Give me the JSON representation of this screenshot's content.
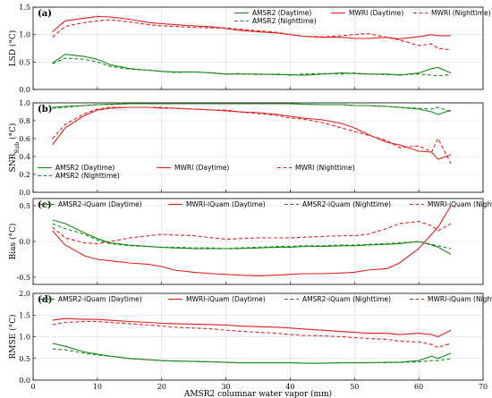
{
  "xlabel": "AMSR2 columnar water vapor (mm)",
  "xlim": [
    0,
    70
  ],
  "xticks": [
    0,
    10,
    20,
    30,
    40,
    50,
    60,
    70
  ],
  "colors": {
    "amsr2": "#1a8a1a",
    "mwri": "#e0201c"
  },
  "chart_data": [
    {
      "type": "line",
      "panel_label": "(a)",
      "ylabel": "LSD",
      "yunit": "(°C)",
      "ylim": [
        0,
        1.5
      ],
      "yticks": [
        0.0,
        0.5,
        1.0,
        1.5
      ],
      "grid": true,
      "legend_placement": "top-right",
      "x": [
        3,
        5,
        8,
        10,
        12,
        15,
        18,
        20,
        22,
        25,
        28,
        30,
        32,
        35,
        38,
        40,
        42,
        45,
        48,
        50,
        52,
        55,
        57,
        60,
        62,
        63,
        65
      ],
      "series": [
        {
          "name": "AMSR2 (Daytime)",
          "source": "amsr2",
          "style": "solid",
          "values": [
            0.48,
            0.64,
            0.6,
            0.55,
            0.45,
            0.38,
            0.35,
            0.33,
            0.32,
            0.32,
            0.3,
            0.28,
            0.28,
            0.28,
            0.27,
            0.27,
            0.26,
            0.28,
            0.3,
            0.29,
            0.28,
            0.28,
            0.26,
            0.3,
            0.38,
            0.4,
            0.3
          ]
        },
        {
          "name": "AMSR2 (Nighttime)",
          "source": "amsr2",
          "style": "dashed",
          "values": [
            0.47,
            0.57,
            0.55,
            0.5,
            0.42,
            0.37,
            0.35,
            0.33,
            0.31,
            0.32,
            0.3,
            0.28,
            0.29,
            0.27,
            0.28,
            0.26,
            0.28,
            0.29,
            0.28,
            0.3,
            0.28,
            0.27,
            0.27,
            0.28,
            0.26,
            0.25,
            0.27
          ]
        },
        {
          "name": "MWRI (Daytime)",
          "source": "mwri",
          "style": "solid",
          "values": [
            1.05,
            1.25,
            1.3,
            1.33,
            1.32,
            1.28,
            1.22,
            1.2,
            1.18,
            1.16,
            1.14,
            1.11,
            1.08,
            1.05,
            1.03,
            1.0,
            0.97,
            0.95,
            0.95,
            0.93,
            0.93,
            0.95,
            0.92,
            0.96,
            1.0,
            0.98,
            0.98
          ]
        },
        {
          "name": "MWRI (Nighttime)",
          "source": "mwri",
          "style": "dashed",
          "values": [
            0.95,
            1.15,
            1.22,
            1.25,
            1.27,
            1.23,
            1.18,
            1.16,
            1.15,
            1.13,
            1.12,
            1.12,
            1.1,
            1.07,
            1.04,
            1.0,
            0.97,
            0.96,
            0.98,
            1.0,
            1.02,
            0.95,
            0.9,
            0.8,
            0.83,
            0.75,
            0.72
          ]
        }
      ]
    },
    {
      "type": "line",
      "panel_label": "(b)",
      "ylabel": "SNR",
      "ylabel_sub": "Sub",
      "yunit": "(°C)",
      "ylim": [
        0,
        1.0
      ],
      "yticks": [
        0.0,
        0.2,
        0.4,
        0.6,
        0.8,
        1.0
      ],
      "grid": true,
      "legend_placement": "bottom",
      "x": [
        3,
        5,
        8,
        10,
        12,
        15,
        18,
        20,
        22,
        25,
        28,
        30,
        32,
        35,
        38,
        40,
        42,
        45,
        48,
        50,
        52,
        55,
        57,
        60,
        62,
        63,
        65
      ],
      "series": [
        {
          "name": "AMSR2 (Daytime)",
          "source": "amsr2",
          "style": "solid",
          "values": [
            0.95,
            0.96,
            0.97,
            0.98,
            0.985,
            0.99,
            0.99,
            0.99,
            0.99,
            0.99,
            0.99,
            0.99,
            0.99,
            0.99,
            0.99,
            0.99,
            0.985,
            0.98,
            0.98,
            0.97,
            0.97,
            0.96,
            0.95,
            0.93,
            0.9,
            0.87,
            0.92
          ]
        },
        {
          "name": "AMSR2 (Nighttime)",
          "source": "amsr2",
          "style": "dashed",
          "values": [
            0.94,
            0.95,
            0.97,
            0.98,
            0.98,
            0.99,
            0.99,
            0.99,
            0.99,
            0.99,
            0.99,
            0.99,
            0.99,
            0.99,
            0.99,
            0.99,
            0.985,
            0.98,
            0.98,
            0.97,
            0.97,
            0.96,
            0.95,
            0.94,
            0.93,
            0.95,
            0.9
          ]
        },
        {
          "name": "MWRI (Daytime)",
          "source": "mwri",
          "style": "solid",
          "values": [
            0.53,
            0.72,
            0.86,
            0.92,
            0.94,
            0.95,
            0.95,
            0.94,
            0.94,
            0.93,
            0.92,
            0.91,
            0.9,
            0.89,
            0.87,
            0.85,
            0.83,
            0.81,
            0.77,
            0.72,
            0.65,
            0.56,
            0.53,
            0.46,
            0.45,
            0.37,
            0.42
          ]
        },
        {
          "name": "MWRI (Nighttime)",
          "source": "mwri",
          "style": "dashed",
          "values": [
            0.6,
            0.76,
            0.88,
            0.93,
            0.95,
            0.95,
            0.95,
            0.95,
            0.94,
            0.93,
            0.92,
            0.92,
            0.9,
            0.88,
            0.86,
            0.83,
            0.82,
            0.78,
            0.72,
            0.68,
            0.64,
            0.58,
            0.5,
            0.52,
            0.45,
            0.6,
            0.32
          ]
        }
      ]
    },
    {
      "type": "line",
      "panel_label": "(c)",
      "ylabel": "Bias",
      "yunit": "(°C)",
      "ylim": [
        -0.6,
        0.6
      ],
      "yticks": [
        -0.5,
        0.0,
        0.5
      ],
      "grid": true,
      "legend_placement": "top",
      "x": [
        3,
        5,
        8,
        10,
        12,
        15,
        18,
        20,
        22,
        25,
        28,
        30,
        32,
        35,
        38,
        40,
        42,
        45,
        48,
        50,
        52,
        55,
        57,
        60,
        62,
        63,
        65
      ],
      "series": [
        {
          "name": "AMSR2-iQuam (Daytime)",
          "source": "amsr2",
          "style": "solid",
          "values": [
            0.3,
            0.25,
            0.12,
            0.04,
            -0.02,
            -0.05,
            -0.07,
            -0.08,
            -0.09,
            -0.1,
            -0.1,
            -0.1,
            -0.1,
            -0.09,
            -0.08,
            -0.08,
            -0.07,
            -0.07,
            -0.06,
            -0.06,
            -0.05,
            -0.04,
            -0.03,
            0.0,
            -0.05,
            -0.08,
            -0.18
          ]
        },
        {
          "name": "MWRI-iQuam (Daytime)",
          "source": "mwri",
          "style": "solid",
          "values": [
            0.15,
            -0.05,
            -0.2,
            -0.25,
            -0.27,
            -0.3,
            -0.32,
            -0.35,
            -0.4,
            -0.43,
            -0.45,
            -0.46,
            -0.47,
            -0.48,
            -0.47,
            -0.46,
            -0.45,
            -0.45,
            -0.44,
            -0.43,
            -0.4,
            -0.38,
            -0.3,
            -0.1,
            0.1,
            0.2,
            0.5
          ]
        },
        {
          "name": "AMSR2-iQuam (Nighttime)",
          "source": "amsr2",
          "style": "dashed",
          "values": [
            0.25,
            0.18,
            0.1,
            0.02,
            -0.03,
            -0.06,
            -0.07,
            -0.08,
            -0.08,
            -0.09,
            -0.09,
            -0.1,
            -0.09,
            -0.08,
            -0.07,
            -0.07,
            -0.06,
            -0.06,
            -0.05,
            -0.05,
            -0.04,
            -0.03,
            -0.02,
            0.0,
            -0.04,
            -0.06,
            -0.1
          ]
        },
        {
          "name": "MWRI-iQuam (Nighttime)",
          "source": "mwri",
          "style": "dashed",
          "values": [
            0.2,
            0.05,
            -0.02,
            -0.03,
            0.0,
            0.05,
            0.08,
            0.1,
            0.09,
            0.08,
            0.05,
            0.03,
            0.04,
            0.05,
            0.05,
            0.05,
            0.06,
            0.07,
            0.08,
            0.08,
            0.1,
            0.18,
            0.25,
            0.28,
            0.22,
            0.15,
            0.25
          ]
        }
      ]
    },
    {
      "type": "line",
      "panel_label": "(d)",
      "ylabel": "RMSE",
      "yunit": "(°C)",
      "ylim": [
        0,
        2.0
      ],
      "yticks": [
        0.0,
        0.5,
        1.0,
        1.5,
        2.0
      ],
      "grid": true,
      "legend_placement": "top",
      "x": [
        3,
        5,
        8,
        10,
        12,
        15,
        18,
        20,
        22,
        25,
        28,
        30,
        32,
        35,
        38,
        40,
        42,
        45,
        48,
        50,
        52,
        55,
        57,
        60,
        62,
        63,
        65
      ],
      "series": [
        {
          "name": "AMSR2-iQuam (Daytime)",
          "source": "amsr2",
          "style": "solid",
          "values": [
            0.85,
            0.78,
            0.65,
            0.6,
            0.55,
            0.5,
            0.47,
            0.45,
            0.44,
            0.43,
            0.42,
            0.41,
            0.4,
            0.4,
            0.4,
            0.4,
            0.39,
            0.39,
            0.4,
            0.4,
            0.4,
            0.41,
            0.41,
            0.45,
            0.55,
            0.5,
            0.62
          ]
        },
        {
          "name": "MWRI-iQuam (Daytime)",
          "source": "mwri",
          "style": "solid",
          "values": [
            1.38,
            1.42,
            1.4,
            1.4,
            1.38,
            1.35,
            1.33,
            1.31,
            1.3,
            1.29,
            1.28,
            1.27,
            1.25,
            1.23,
            1.22,
            1.2,
            1.18,
            1.15,
            1.12,
            1.1,
            1.08,
            1.08,
            1.05,
            1.08,
            1.05,
            1.0,
            1.15
          ]
        },
        {
          "name": "AMSR2-iQuam (Nighttime)",
          "source": "amsr2",
          "style": "dashed",
          "values": [
            0.72,
            0.7,
            0.62,
            0.58,
            0.55,
            0.5,
            0.47,
            0.45,
            0.44,
            0.43,
            0.42,
            0.41,
            0.4,
            0.4,
            0.4,
            0.4,
            0.39,
            0.39,
            0.4,
            0.4,
            0.4,
            0.4,
            0.41,
            0.42,
            0.45,
            0.45,
            0.5
          ]
        },
        {
          "name": "MWRI-iQuam (Nighttime)",
          "source": "mwri",
          "style": "dashed",
          "values": [
            1.28,
            1.33,
            1.35,
            1.35,
            1.33,
            1.3,
            1.27,
            1.25,
            1.22,
            1.2,
            1.18,
            1.15,
            1.13,
            1.1,
            1.08,
            1.05,
            1.03,
            1.02,
            1.0,
            0.98,
            0.96,
            0.94,
            0.9,
            0.88,
            0.82,
            0.75,
            0.85
          ]
        }
      ]
    }
  ]
}
